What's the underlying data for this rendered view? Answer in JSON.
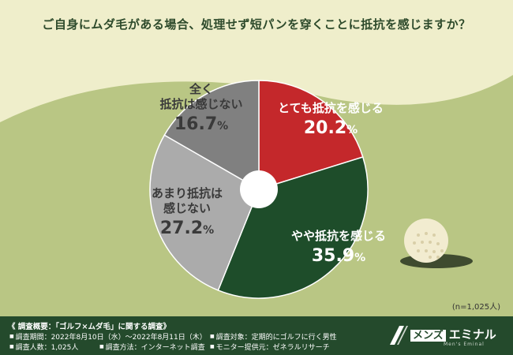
{
  "title": "ご自身にムダ毛がある場合、処理せず短パンを穿くことに抵抗を感じますか？",
  "sample_size": "(n=1,025人)",
  "colors": {
    "background": "#efeecb",
    "hill": "#b9c684",
    "footer": "#244a2c",
    "strong_resist": "#c4282b",
    "some_resist": "#1e4d2a",
    "little_resist": "#ababab",
    "no_resist": "#808080"
  },
  "chart_data": {
    "type": "pie",
    "unit": "%",
    "start_angle_deg": 0,
    "direction": "clockwise",
    "donut_hole": true,
    "slices": [
      {
        "label": "とても抵抗を感じる",
        "value": 20.2,
        "value_text": "20.2%",
        "color": "#c4282b"
      },
      {
        "label": "やや抵抗を感じる",
        "value": 35.9,
        "value_text": "35.9%",
        "color": "#1e4d2a"
      },
      {
        "label": "あまり抵抗は感じない",
        "value": 27.2,
        "value_text": "27.2%",
        "color": "#ababab"
      },
      {
        "label": "全く抵抗は感じない",
        "value": 16.7,
        "value_text": "16.7%",
        "color": "#808080"
      }
    ]
  },
  "labels": {
    "strong": {
      "line1": "とても抵抗を感じる",
      "pct_num": "20.2",
      "pct_unit": "%"
    },
    "some": {
      "line1": "やや抵抗を感じる",
      "pct_num": "35.9",
      "pct_unit": "%"
    },
    "little": {
      "line1": "あまり抵抗は",
      "line2": "感じない",
      "pct_num": "27.2",
      "pct_unit": "%"
    },
    "none": {
      "line1": "全く",
      "line2": "抵抗は感じない",
      "pct_num": "16.7",
      "pct_unit": "%"
    }
  },
  "footer": {
    "heading": "《 調査概要：「ゴルフ×ムダ毛」に関する調査》",
    "items": [
      "調査期間：2022年8月10日（水）〜2022年8月11日（木）",
      "調査人数：1,025人",
      "調査方法：インターネット調査",
      "調査対象：定期的にゴルフに行く男性",
      "モニター提供元：ゼネラルリサーチ"
    ],
    "logo_box": "メンズ",
    "logo_text": "エミナル",
    "logo_sub": "Men's Eminal"
  }
}
